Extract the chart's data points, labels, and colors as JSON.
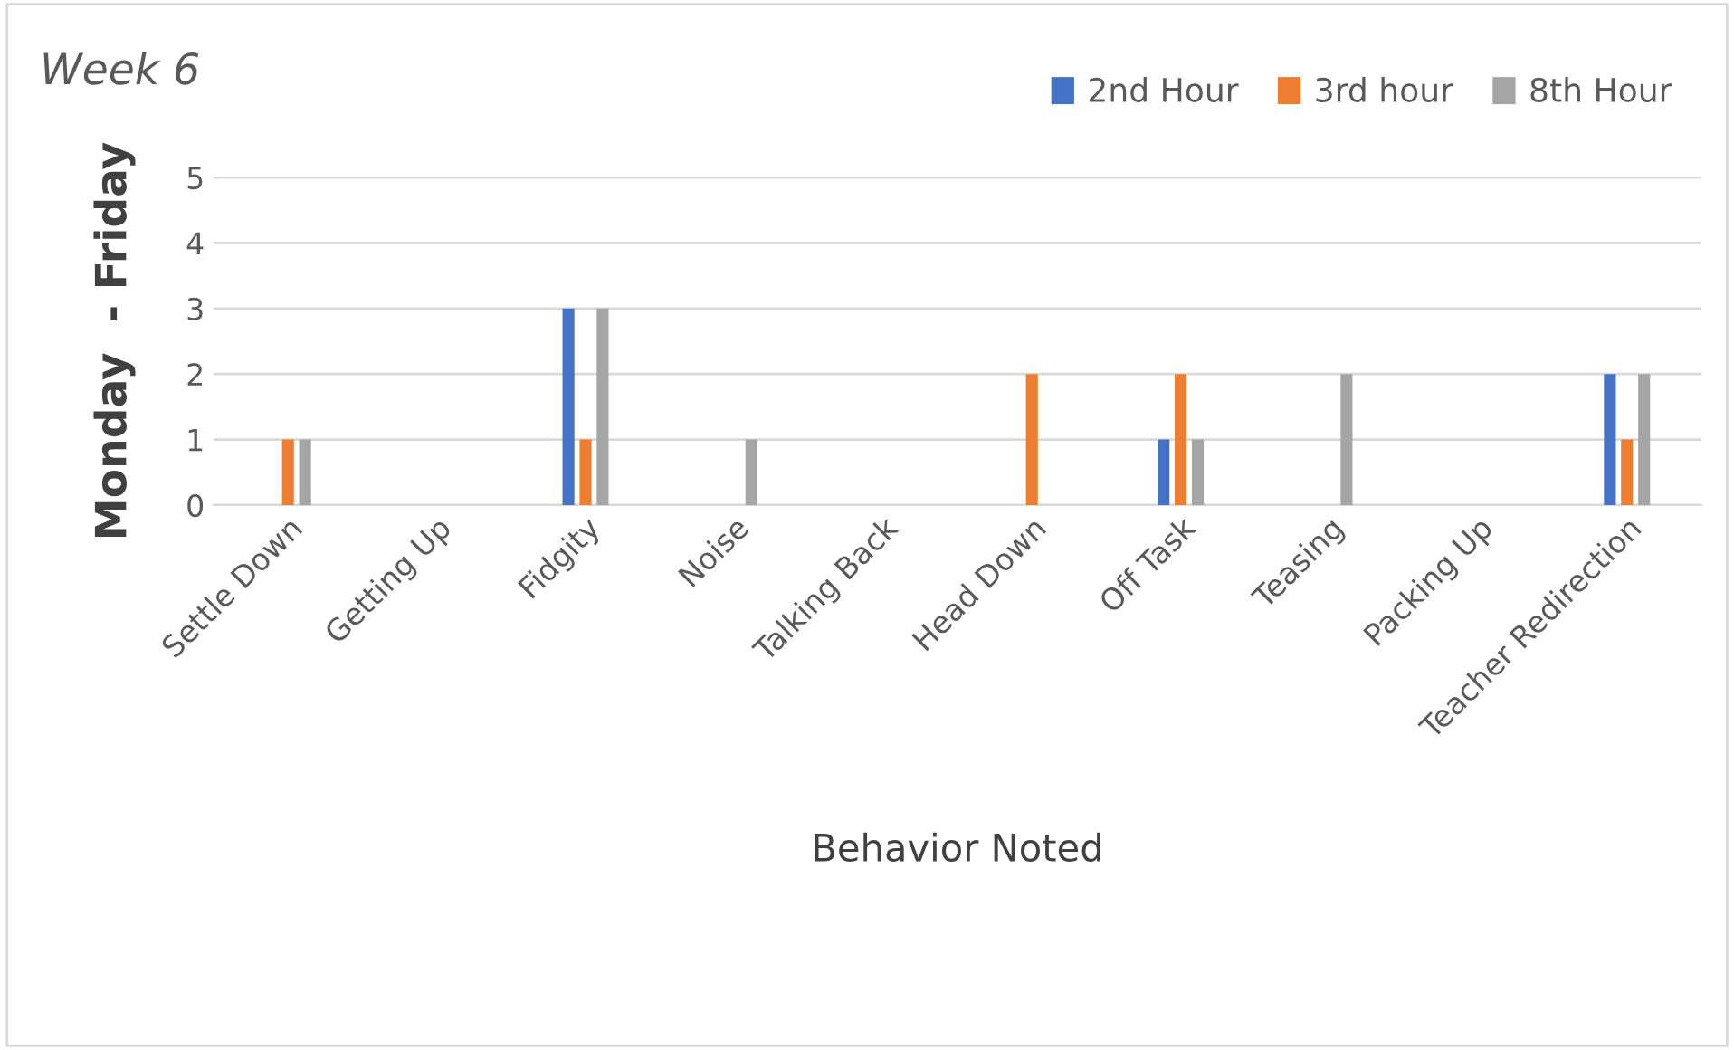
{
  "chart_data": {
    "type": "bar",
    "title": "Week 6",
    "xlabel": "Behavior Noted",
    "ylabel": "Monday  - Friday",
    "categories": [
      "Settle Down",
      "Getting Up",
      "Fidgity",
      "Noise",
      "Talking Back",
      "Head Down",
      "Off Task",
      "Teasing",
      "Packing Up",
      "Teacher Redirection"
    ],
    "series": [
      {
        "name": "2nd Hour",
        "color": "#4472c4",
        "values": [
          0,
          0,
          3,
          0,
          0,
          0,
          1,
          0,
          0,
          2
        ]
      },
      {
        "name": "3rd hour",
        "color": "#ed7d31",
        "values": [
          1,
          0,
          1,
          0,
          0,
          2,
          2,
          0,
          0,
          1
        ]
      },
      {
        "name": "8th Hour",
        "color": "#a5a5a5",
        "values": [
          1,
          0,
          3,
          1,
          0,
          0,
          1,
          2,
          0,
          2
        ]
      }
    ],
    "ylim": [
      0,
      5
    ],
    "yticks": [
      0,
      1,
      2,
      3,
      4,
      5
    ],
    "grid": "y",
    "legend": "top right"
  }
}
